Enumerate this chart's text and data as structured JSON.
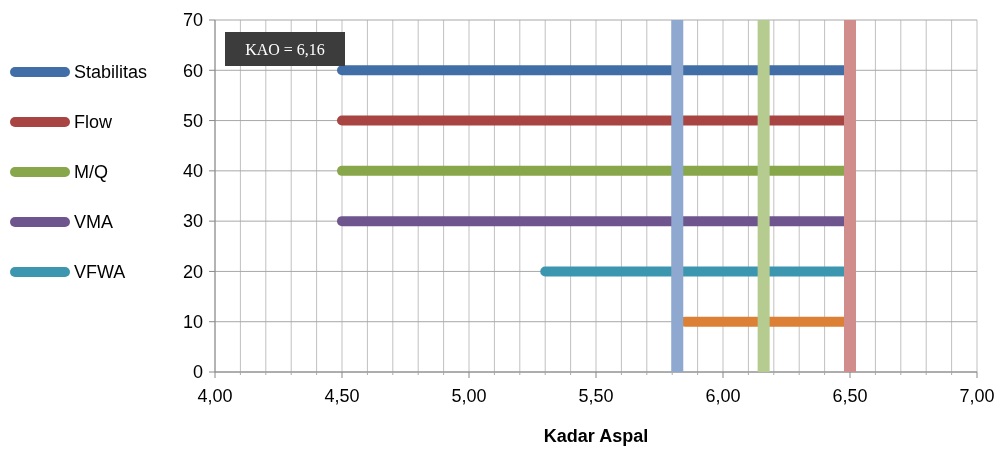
{
  "chart_data": {
    "type": "line",
    "xlabel": "Kadar Aspal",
    "xlim": [
      4,
      7
    ],
    "ylim": [
      0,
      70
    ],
    "xticks": [
      {
        "value": 4,
        "label": "4,00"
      },
      {
        "value": 4.1,
        "label": null
      },
      {
        "value": 4.2,
        "label": null
      },
      {
        "value": 4.3,
        "label": null
      },
      {
        "value": 4.4,
        "label": null
      },
      {
        "value": 4.5,
        "label": "4,50"
      },
      {
        "value": 4.6,
        "label": null
      },
      {
        "value": 4.7,
        "label": null
      },
      {
        "value": 4.8,
        "label": null
      },
      {
        "value": 4.9,
        "label": null
      },
      {
        "value": 5,
        "label": "5,00"
      },
      {
        "value": 5.1,
        "label": null
      },
      {
        "value": 5.2,
        "label": null
      },
      {
        "value": 5.3,
        "label": null
      },
      {
        "value": 5.4,
        "label": null
      },
      {
        "value": 5.5,
        "label": "5,50"
      },
      {
        "value": 5.6,
        "label": null
      },
      {
        "value": 5.7,
        "label": null
      },
      {
        "value": 5.8,
        "label": null
      },
      {
        "value": 5.9,
        "label": null
      },
      {
        "value": 6,
        "label": "6,00"
      },
      {
        "value": 6.1,
        "label": null
      },
      {
        "value": 6.2,
        "label": null
      },
      {
        "value": 6.3,
        "label": null
      },
      {
        "value": 6.4,
        "label": null
      },
      {
        "value": 6.5,
        "label": "6,50"
      },
      {
        "value": 6.6,
        "label": null
      },
      {
        "value": 6.7,
        "label": null
      },
      {
        "value": 6.8,
        "label": null
      },
      {
        "value": 6.9,
        "label": null
      },
      {
        "value": 7,
        "label": "7,00"
      }
    ],
    "yticks": [
      0,
      10,
      20,
      30,
      40,
      50,
      60,
      70
    ],
    "grid": true,
    "legend": "left",
    "marker": "none",
    "line_style": "solid",
    "annotations": [
      "KAO = 6,16"
    ],
    "series": [
      {
        "name": "Stabilitas",
        "color": "#416ea6",
        "x": [
          4.5,
          6.5
        ],
        "values": [
          60,
          60
        ]
      },
      {
        "name": "Flow",
        "color": "#a84441",
        "x": [
          4.5,
          6.5
        ],
        "values": [
          50,
          50
        ]
      },
      {
        "name": "M/Q",
        "color": "#88a64a",
        "x": [
          4.5,
          6.5
        ],
        "values": [
          40,
          40
        ]
      },
      {
        "name": "VMA",
        "color": "#6e558e",
        "x": [
          4.5,
          6.5
        ],
        "values": [
          30,
          30
        ]
      },
      {
        "name": "VFWA",
        "color": "#3d96b0",
        "x": [
          5.3,
          6.5
        ],
        "values": [
          20,
          20
        ]
      },
      {
        "color": "#dc8035",
        "x": [
          5.85,
          6.5
        ],
        "values": [
          10,
          10
        ]
      },
      {
        "color": "#8ea8cf",
        "x": [
          5.82,
          5.82
        ],
        "values": [
          0,
          70
        ]
      },
      {
        "color": "#b5cb8f",
        "x": [
          6.16,
          6.16
        ],
        "values": [
          0,
          70
        ]
      },
      {
        "color": "#d08d8c",
        "x": [
          6.5,
          6.5
        ],
        "values": [
          0,
          70
        ]
      }
    ]
  }
}
